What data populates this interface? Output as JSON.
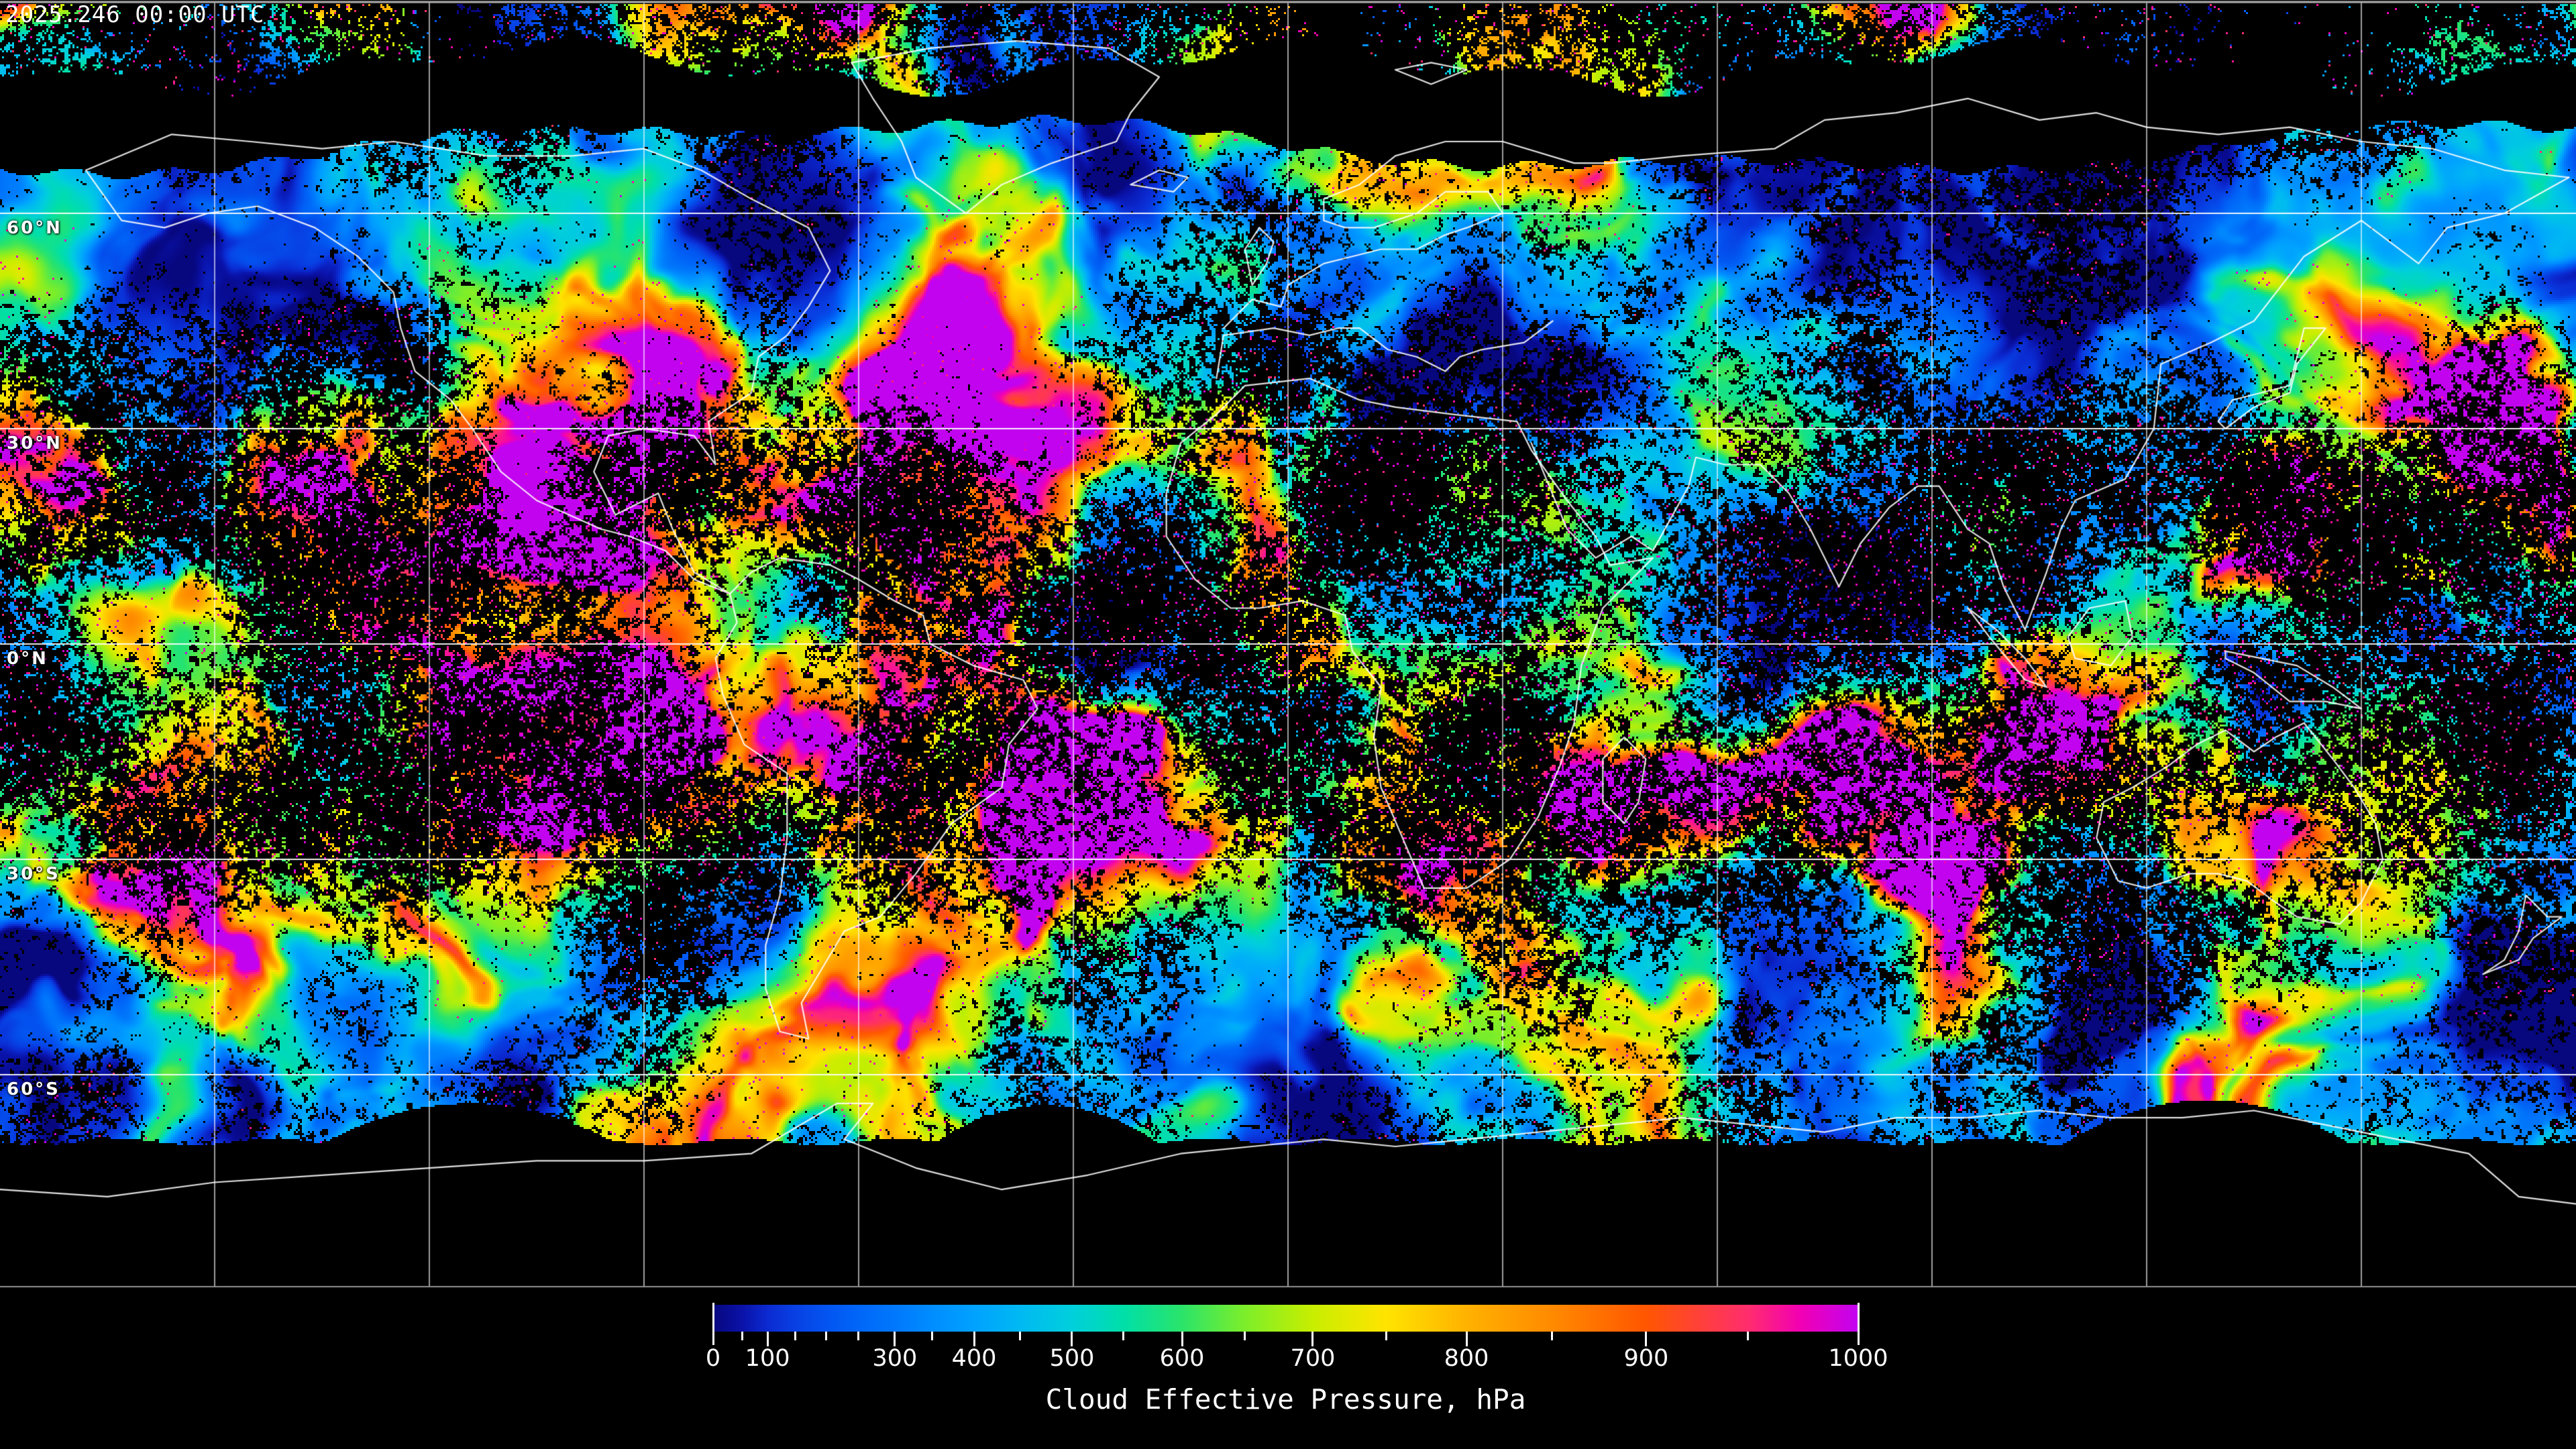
{
  "header": {
    "timestamp": "2025.246 00:00 UTC"
  },
  "map": {
    "latitude_labels": [
      {
        "text": "60°N",
        "lat": 60
      },
      {
        "text": "30°N",
        "lat": 30
      },
      {
        "text": "0°N",
        "lat": 0
      },
      {
        "text": "30°S",
        "lat": -30
      },
      {
        "text": "60°S",
        "lat": -60
      }
    ],
    "grid": {
      "lat_lines_deg": [
        60,
        30,
        0,
        -30,
        -60
      ],
      "lon_line_count": 11
    }
  },
  "colorbar": {
    "title": "Cloud Effective Pressure, hPa",
    "unit": "hPa",
    "min": 0,
    "max": 1000,
    "labeled_values": [
      0,
      100,
      300,
      400,
      500,
      600,
      700,
      800,
      900,
      1000
    ],
    "ticks": [
      {
        "value": 0,
        "fraction": 0.0
      },
      {
        "value": 50,
        "fraction": 0.0252
      },
      {
        "value": 100,
        "fraction": 0.0475
      },
      {
        "value": 150,
        "fraction": 0.0715
      },
      {
        "value": 200,
        "fraction": 0.099
      },
      {
        "value": 250,
        "fraction": 0.1271
      },
      {
        "value": 300,
        "fraction": 0.1587
      },
      {
        "value": 350,
        "fraction": 0.191
      },
      {
        "value": 400,
        "fraction": 0.2279
      },
      {
        "value": 450,
        "fraction": 0.2683
      },
      {
        "value": 500,
        "fraction": 0.3134
      },
      {
        "value": 550,
        "fraction": 0.3585
      },
      {
        "value": 600,
        "fraction": 0.4095
      },
      {
        "value": 650,
        "fraction": 0.464
      },
      {
        "value": 700,
        "fraction": 0.5237
      },
      {
        "value": 750,
        "fraction": 0.5876
      },
      {
        "value": 800,
        "fraction": 0.6579
      },
      {
        "value": 850,
        "fraction": 0.7328
      },
      {
        "value": 900,
        "fraction": 0.8148
      },
      {
        "value": 950,
        "fraction": 0.9039
      },
      {
        "value": 1000,
        "fraction": 1.0
      }
    ],
    "gradient_stops": [
      {
        "value": 0,
        "fraction": 0.0,
        "color": "#07077e"
      },
      {
        "value": 50,
        "fraction": 0.0252,
        "color": "#0a12a8"
      },
      {
        "value": 100,
        "fraction": 0.0475,
        "color": "#0b2ad0"
      },
      {
        "value": 150,
        "fraction": 0.0715,
        "color": "#0840e4"
      },
      {
        "value": 200,
        "fraction": 0.099,
        "color": "#0354f0"
      },
      {
        "value": 250,
        "fraction": 0.1271,
        "color": "#0066f8"
      },
      {
        "value": 300,
        "fraction": 0.1587,
        "color": "#0078fc"
      },
      {
        "value": 350,
        "fraction": 0.191,
        "color": "#008dff"
      },
      {
        "value": 400,
        "fraction": 0.2279,
        "color": "#00a2ff"
      },
      {
        "value": 450,
        "fraction": 0.2683,
        "color": "#00b9f2"
      },
      {
        "value": 500,
        "fraction": 0.3134,
        "color": "#00cfdc"
      },
      {
        "value": 550,
        "fraction": 0.3585,
        "color": "#00dfa8"
      },
      {
        "value": 600,
        "fraction": 0.4095,
        "color": "#2ae46a"
      },
      {
        "value": 650,
        "fraction": 0.464,
        "color": "#7cee2a"
      },
      {
        "value": 700,
        "fraction": 0.5237,
        "color": "#c8ee00"
      },
      {
        "value": 750,
        "fraction": 0.5876,
        "color": "#ffe400"
      },
      {
        "value": 800,
        "fraction": 0.6579,
        "color": "#ffb200"
      },
      {
        "value": 850,
        "fraction": 0.7328,
        "color": "#ff8a00"
      },
      {
        "value": 900,
        "fraction": 0.8148,
        "color": "#ff5600"
      },
      {
        "value": 950,
        "fraction": 0.9039,
        "color": "#ff2d6e"
      },
      {
        "value": 975,
        "fraction": 0.949,
        "color": "#f200b2"
      },
      {
        "value": 1000,
        "fraction": 1.0,
        "color": "#c203f0"
      }
    ]
  }
}
